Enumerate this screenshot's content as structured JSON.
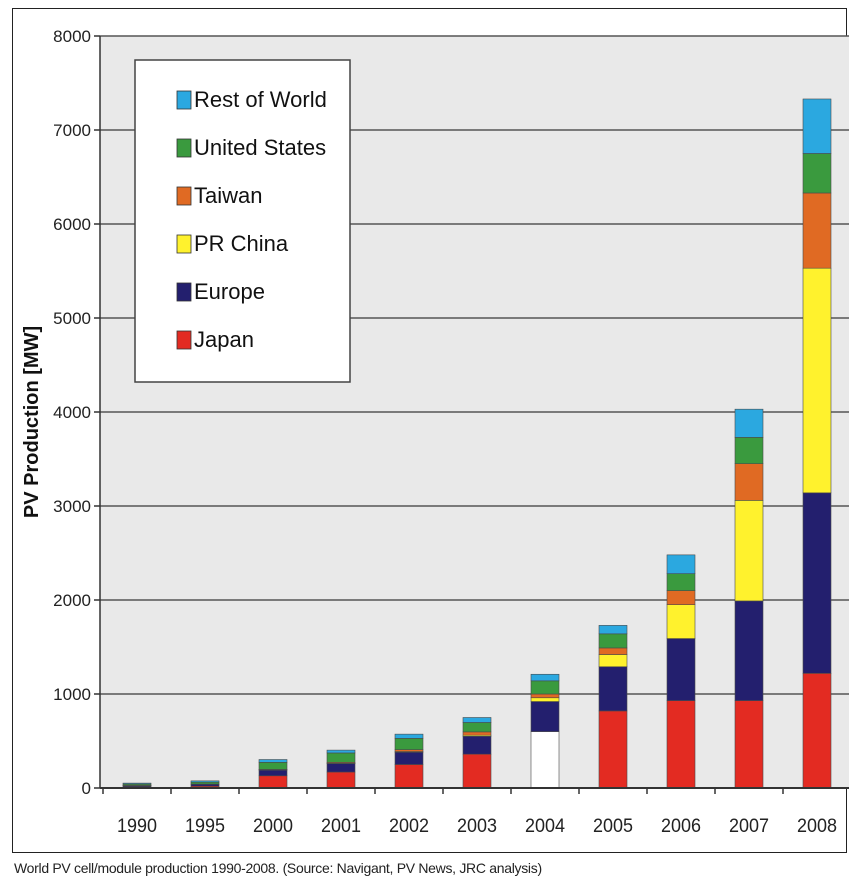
{
  "chart_data": {
    "type": "bar",
    "stacked": true,
    "title": "",
    "xlabel": "",
    "ylabel": "PV Production [MW]",
    "ylim": [
      0,
      8000
    ],
    "yticks": [
      0,
      1000,
      2000,
      3000,
      4000,
      5000,
      6000,
      7000,
      8000
    ],
    "grid": true,
    "legend_position": "top-left",
    "categories": [
      "1990",
      "1995",
      "2000",
      "2001",
      "2002",
      "2003",
      "2004",
      "2005",
      "2006",
      "2007",
      "2008"
    ],
    "series": [
      {
        "name": "Japan",
        "color": "#e32b22",
        "values": [
          15,
          20,
          130,
          170,
          250,
          360,
          600,
          820,
          930,
          930,
          1220
        ]
      },
      {
        "name": "Europe",
        "color": "#231f6e",
        "values": [
          10,
          20,
          60,
          90,
          130,
          190,
          320,
          470,
          660,
          1060,
          1920
        ]
      },
      {
        "name": "PR China",
        "color": "#fff22d",
        "values": [
          1,
          1,
          3,
          3,
          8,
          12,
          40,
          130,
          360,
          1070,
          2390
        ]
      },
      {
        "name": "Taiwan",
        "color": "#e06a23",
        "values": [
          1,
          1,
          5,
          10,
          20,
          35,
          40,
          70,
          150,
          390,
          800
        ]
      },
      {
        "name": "United States",
        "color": "#3a9a3e",
        "values": [
          15,
          20,
          75,
          100,
          120,
          100,
          140,
          150,
          180,
          280,
          420
        ]
      },
      {
        "name": "Rest of World",
        "color": "#2ba8e0",
        "values": [
          10,
          14,
          30,
          30,
          45,
          53,
          70,
          90,
          200,
          300,
          580
        ]
      }
    ]
  },
  "caption": "World PV cell/module production 1990-2008. (Source: Navigant, PV News, JRC analysis)"
}
